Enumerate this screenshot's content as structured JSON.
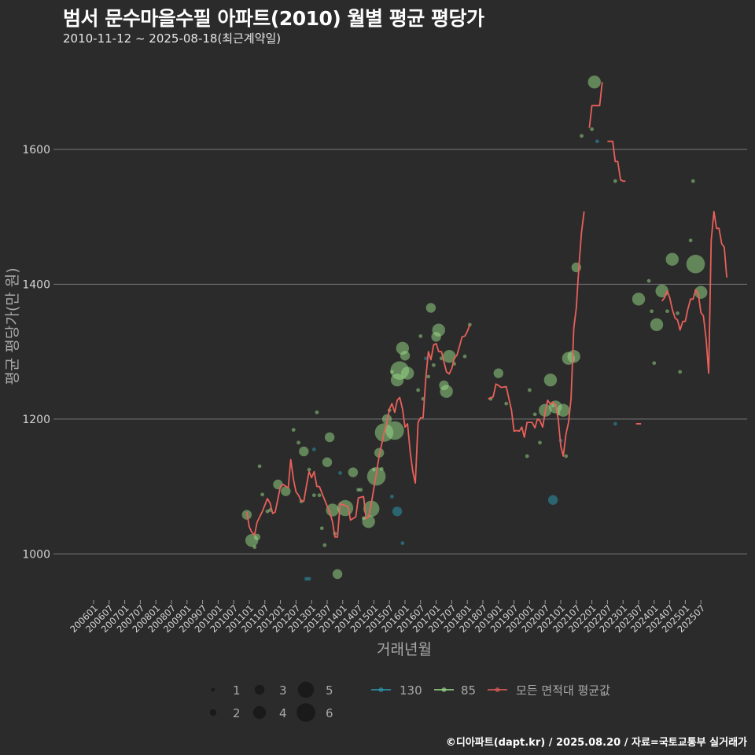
{
  "chart_data": {
    "type": "scatter",
    "title": "범서 문수마을수필 아파트(2010) 월별 평균 평당가",
    "subtitle": "2010-11-12 ~ 2025-08-18(최근계약일)",
    "xlabel": "거래년월",
    "ylabel": "평균 평당가(만 원)",
    "caption": "©디아파트(dapt.kr) / 2025.08.20 / 자료=국토교통부 실거래가",
    "ylim": [
      935,
      1740
    ],
    "yticks": [
      1000,
      1200,
      1400,
      1600
    ],
    "grid": true,
    "x_tick_labels": [
      "200601",
      "200607",
      "200701",
      "200707",
      "200801",
      "200807",
      "200901",
      "200907",
      "201001",
      "201007",
      "201101",
      "201107",
      "201201",
      "201207",
      "201301",
      "201307",
      "201401",
      "201407",
      "201501",
      "201507",
      "201601",
      "201607",
      "201701",
      "201707",
      "201801",
      "201807",
      "201901",
      "201907",
      "202001",
      "202007",
      "202101",
      "202107",
      "202201",
      "202207",
      "202301",
      "202307",
      "202401",
      "202407",
      "202501",
      "202507"
    ],
    "colors": {
      "s130": "#2a9fb5",
      "s85": "#9be089",
      "avg": "#e8605a"
    },
    "size_legend": {
      "labels": [
        "1",
        "2",
        "3",
        "4",
        "5",
        "6"
      ]
    },
    "series": [
      {
        "name": "130",
        "color": "#2a9fb5",
        "points": [
          [
            2012.83,
            963,
            1
          ],
          [
            2012.92,
            963,
            1
          ],
          [
            2013.08,
            1155,
            1
          ],
          [
            2013.92,
            1120,
            1
          ],
          [
            2015.58,
            1085,
            1
          ],
          [
            2015.75,
            1063,
            3
          ],
          [
            2015.92,
            1016,
            1
          ],
          [
            2016.67,
            1290,
            1
          ],
          [
            2020.75,
            1080,
            3
          ],
          [
            2021.0,
            1168,
            1
          ],
          [
            2022.17,
            1612,
            1
          ],
          [
            2022.75,
            1193,
            1
          ]
        ]
      },
      {
        "name": "85",
        "color": "#9be089",
        "points": [
          [
            2010.92,
            1058,
            3
          ],
          [
            2011.08,
            1020,
            4
          ],
          [
            2011.17,
            1010,
            1
          ],
          [
            2011.25,
            1025,
            2
          ],
          [
            2011.33,
            1130,
            1
          ],
          [
            2011.42,
            1088,
            1
          ],
          [
            2011.58,
            1063,
            1
          ],
          [
            2011.67,
            1065,
            1
          ],
          [
            2011.92,
            1103,
            3
          ],
          [
            2012.17,
            1093,
            3
          ],
          [
            2012.42,
            1184,
            1
          ],
          [
            2012.58,
            1165,
            1
          ],
          [
            2012.67,
            1078,
            1
          ],
          [
            2012.75,
            1152,
            3
          ],
          [
            2012.92,
            1125,
            1
          ],
          [
            2013.08,
            1087,
            1
          ],
          [
            2013.17,
            1210,
            1
          ],
          [
            2013.25,
            1087,
            1
          ],
          [
            2013.33,
            1038,
            1
          ],
          [
            2013.42,
            1013,
            1
          ],
          [
            2013.5,
            1136,
            3
          ],
          [
            2013.58,
            1173,
            3
          ],
          [
            2013.67,
            1065,
            4
          ],
          [
            2013.75,
            1030,
            1
          ],
          [
            2013.83,
            970,
            3
          ],
          [
            2014.08,
            1068,
            5
          ],
          [
            2014.33,
            1121,
            3
          ],
          [
            2014.5,
            1095,
            1
          ],
          [
            2014.58,
            1095,
            1
          ],
          [
            2014.67,
            1053,
            1
          ],
          [
            2014.83,
            1048,
            4
          ],
          [
            2014.92,
            1067,
            5
          ],
          [
            2015.0,
            1125,
            1
          ],
          [
            2015.08,
            1115,
            6
          ],
          [
            2015.17,
            1150,
            3
          ],
          [
            2015.25,
            1126,
            1
          ],
          [
            2015.33,
            1180,
            6
          ],
          [
            2015.42,
            1200,
            3
          ],
          [
            2015.5,
            1213,
            1
          ],
          [
            2015.58,
            1270,
            1
          ],
          [
            2015.67,
            1183,
            6
          ],
          [
            2015.75,
            1258,
            4
          ],
          [
            2015.83,
            1272,
            6
          ],
          [
            2015.92,
            1305,
            4
          ],
          [
            2016.0,
            1294,
            3
          ],
          [
            2016.08,
            1268,
            4
          ],
          [
            2016.42,
            1243,
            1
          ],
          [
            2016.5,
            1323,
            1
          ],
          [
            2016.58,
            1230,
            1
          ],
          [
            2016.75,
            1263,
            1
          ],
          [
            2016.83,
            1365,
            3
          ],
          [
            2016.92,
            1280,
            1
          ],
          [
            2017.0,
            1322,
            3
          ],
          [
            2017.08,
            1332,
            4
          ],
          [
            2017.17,
            1290,
            1
          ],
          [
            2017.25,
            1250,
            3
          ],
          [
            2017.33,
            1241,
            4
          ],
          [
            2017.42,
            1293,
            4
          ],
          [
            2017.58,
            1282,
            1
          ],
          [
            2017.92,
            1293,
            1
          ],
          [
            2018.08,
            1340,
            1
          ],
          [
            2018.75,
            1230,
            1
          ],
          [
            2019.0,
            1268,
            3
          ],
          [
            2019.25,
            1223,
            1
          ],
          [
            2019.92,
            1145,
            1
          ],
          [
            2020.0,
            1243,
            1
          ],
          [
            2020.17,
            1207,
            1
          ],
          [
            2020.33,
            1165,
            1
          ],
          [
            2020.5,
            1213,
            4
          ],
          [
            2020.67,
            1258,
            4
          ],
          [
            2020.75,
            1220,
            1
          ],
          [
            2020.83,
            1218,
            4
          ],
          [
            2020.92,
            1208,
            1
          ],
          [
            2021.08,
            1213,
            4
          ],
          [
            2021.17,
            1145,
            1
          ],
          [
            2021.25,
            1290,
            4
          ],
          [
            2021.42,
            1293,
            4
          ],
          [
            2021.5,
            1425,
            3
          ],
          [
            2021.67,
            1620,
            1
          ],
          [
            2022.0,
            1630,
            1
          ],
          [
            2022.08,
            1700,
            4
          ],
          [
            2022.75,
            1553,
            1
          ],
          [
            2023.5,
            1378,
            4
          ],
          [
            2023.83,
            1405,
            1
          ],
          [
            2023.92,
            1360,
            1
          ],
          [
            2024.0,
            1283,
            1
          ],
          [
            2024.08,
            1340,
            4
          ],
          [
            2024.25,
            1390,
            4
          ],
          [
            2024.42,
            1360,
            1
          ],
          [
            2024.58,
            1437,
            4
          ],
          [
            2024.75,
            1357,
            1
          ],
          [
            2024.83,
            1270,
            1
          ],
          [
            2025.17,
            1465,
            1
          ],
          [
            2025.25,
            1553,
            1
          ],
          [
            2025.33,
            1430,
            6
          ],
          [
            2025.5,
            1388,
            4
          ]
        ]
      }
    ],
    "average_line": {
      "name": "모든 면적대 평균값",
      "color": "#e8605a",
      "segments": [
        [
          [
            2010.92,
            1062
          ],
          [
            2011.0,
            1040
          ],
          [
            2011.08,
            1032
          ],
          [
            2011.17,
            1028
          ],
          [
            2011.25,
            1047
          ],
          [
            2011.42,
            1063
          ],
          [
            2011.58,
            1082
          ],
          [
            2011.67,
            1075
          ],
          [
            2011.75,
            1060
          ],
          [
            2011.83,
            1062
          ],
          [
            2012.0,
            1100
          ],
          [
            2012.08,
            1103
          ],
          [
            2012.25,
            1098
          ],
          [
            2012.33,
            1140
          ],
          [
            2012.42,
            1110
          ],
          [
            2012.5,
            1092
          ],
          [
            2012.58,
            1087
          ],
          [
            2012.67,
            1078
          ],
          [
            2012.75,
            1078
          ],
          [
            2012.83,
            1100
          ],
          [
            2012.92,
            1122
          ],
          [
            2013.0,
            1113
          ],
          [
            2013.08,
            1122
          ],
          [
            2013.17,
            1100
          ],
          [
            2013.25,
            1100
          ],
          [
            2013.42,
            1080
          ],
          [
            2013.58,
            1062
          ],
          [
            2013.67,
            1048
          ],
          [
            2013.75,
            1025
          ],
          [
            2013.83,
            1025
          ],
          [
            2013.92,
            1075
          ],
          [
            2014.0,
            1073
          ],
          [
            2014.08,
            1072
          ],
          [
            2014.17,
            1070
          ],
          [
            2014.25,
            1050
          ],
          [
            2014.42,
            1055
          ],
          [
            2014.5,
            1083
          ],
          [
            2014.67,
            1085
          ],
          [
            2014.75,
            1052
          ],
          [
            2014.83,
            1055
          ],
          [
            2014.92,
            1075
          ],
          [
            2015.08,
            1120
          ],
          [
            2015.17,
            1145
          ],
          [
            2015.33,
            1180
          ],
          [
            2015.42,
            1195
          ],
          [
            2015.5,
            1215
          ],
          [
            2015.58,
            1223
          ],
          [
            2015.67,
            1210
          ],
          [
            2015.75,
            1228
          ],
          [
            2015.83,
            1232
          ],
          [
            2015.92,
            1215
          ],
          [
            2016.0,
            1188
          ],
          [
            2016.08,
            1193
          ],
          [
            2016.17,
            1150
          ],
          [
            2016.25,
            1122
          ],
          [
            2016.33,
            1105
          ],
          [
            2016.42,
            1195
          ],
          [
            2016.5,
            1202
          ],
          [
            2016.58,
            1202
          ],
          [
            2016.67,
            1262
          ],
          [
            2016.75,
            1300
          ],
          [
            2016.83,
            1288
          ],
          [
            2016.92,
            1310
          ],
          [
            2017.0,
            1312
          ],
          [
            2017.08,
            1300
          ],
          [
            2017.17,
            1300
          ],
          [
            2017.25,
            1285
          ],
          [
            2017.33,
            1270
          ],
          [
            2017.42,
            1267
          ],
          [
            2017.5,
            1275
          ],
          [
            2017.58,
            1290
          ],
          [
            2017.67,
            1295
          ],
          [
            2017.75,
            1308
          ],
          [
            2017.83,
            1322
          ],
          [
            2017.92,
            1323
          ],
          [
            2018.0,
            1330
          ],
          [
            2018.08,
            1340
          ]
        ],
        [
          [
            2018.67,
            1230
          ],
          [
            2018.83,
            1233
          ],
          [
            2018.92,
            1252
          ],
          [
            2019.0,
            1250
          ],
          [
            2019.08,
            1247
          ],
          [
            2019.25,
            1248
          ],
          [
            2019.42,
            1213
          ],
          [
            2019.5,
            1182
          ],
          [
            2019.58,
            1183
          ],
          [
            2019.67,
            1182
          ],
          [
            2019.75,
            1188
          ],
          [
            2019.83,
            1173
          ],
          [
            2019.92,
            1195
          ],
          [
            2020.08,
            1195
          ],
          [
            2020.17,
            1187
          ],
          [
            2020.25,
            1200
          ],
          [
            2020.33,
            1198
          ],
          [
            2020.42,
            1188
          ],
          [
            2020.5,
            1210
          ],
          [
            2020.58,
            1228
          ],
          [
            2020.67,
            1222
          ],
          [
            2020.75,
            1225
          ],
          [
            2020.83,
            1222
          ],
          [
            2020.92,
            1200
          ],
          [
            2021.0,
            1160
          ],
          [
            2021.08,
            1145
          ],
          [
            2021.17,
            1178
          ],
          [
            2021.25,
            1195
          ],
          [
            2021.33,
            1230
          ],
          [
            2021.42,
            1335
          ],
          [
            2021.5,
            1365
          ],
          [
            2021.58,
            1425
          ],
          [
            2021.67,
            1478
          ],
          [
            2021.75,
            1508
          ]
        ],
        [
          [
            2021.92,
            1632
          ],
          [
            2022.0,
            1665
          ],
          [
            2022.08,
            1665
          ],
          [
            2022.17,
            1665
          ],
          [
            2022.25,
            1665
          ],
          [
            2022.33,
            1700
          ]
        ],
        [
          [
            2022.5,
            1612
          ],
          [
            2022.58,
            1612
          ],
          [
            2022.67,
            1612
          ],
          [
            2022.75,
            1582
          ],
          [
            2022.83,
            1582
          ],
          [
            2022.92,
            1555
          ],
          [
            2023.0,
            1553
          ],
          [
            2023.08,
            1553
          ]
        ],
        [
          [
            2023.42,
            1193
          ],
          [
            2023.58,
            1193
          ]
        ],
        [
          [
            2024.25,
            1375
          ],
          [
            2024.33,
            1380
          ],
          [
            2024.42,
            1390
          ],
          [
            2024.5,
            1380
          ],
          [
            2024.58,
            1363
          ],
          [
            2024.67,
            1350
          ],
          [
            2024.75,
            1347
          ],
          [
            2024.83,
            1332
          ],
          [
            2024.92,
            1345
          ],
          [
            2025.0,
            1345
          ],
          [
            2025.08,
            1363
          ],
          [
            2025.17,
            1378
          ],
          [
            2025.25,
            1378
          ],
          [
            2025.33,
            1392
          ],
          [
            2025.42,
            1385
          ],
          [
            2025.5,
            1358
          ],
          [
            2025.58,
            1353
          ],
          [
            2025.67,
            1318
          ],
          [
            2025.75,
            1268
          ],
          [
            2025.83,
            1465
          ],
          [
            2025.92,
            1508
          ],
          [
            2026.0,
            1483
          ],
          [
            2026.08,
            1483
          ],
          [
            2026.17,
            1460
          ],
          [
            2026.25,
            1455
          ],
          [
            2026.33,
            1410
          ]
        ]
      ]
    }
  }
}
